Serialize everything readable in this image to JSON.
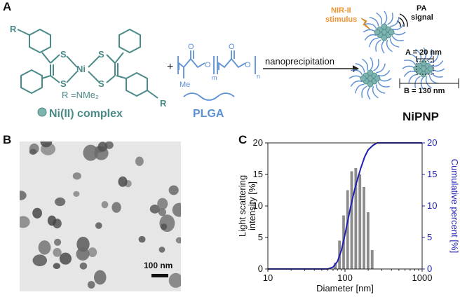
{
  "panels": {
    "a": "A",
    "b": "B",
    "c": "C"
  },
  "panel_a": {
    "substituent": "R",
    "metal": "Ni",
    "sulfur": "S",
    "r_definition": "R =NMe₂",
    "complex_label": "Ni(II) complex",
    "plus": "+",
    "methyl": "Me",
    "sub_m": "m",
    "sub_n": "n",
    "oxygen": "O",
    "polymer_label": "PLGA",
    "arrow_label": "nanoprecipitation",
    "stimulus_line1": "NIR-II",
    "stimulus_line2": "stimulus",
    "signal_line1": "PA",
    "signal_line2": "signal",
    "dim_a": "A = 20 nm",
    "dim_b": "B = 130 nm",
    "product_label": "NiPNP",
    "colors": {
      "teal": "#4a8a87",
      "blue": "#5b8fd6",
      "orange": "#f2922e"
    }
  },
  "panel_b": {
    "scale_bar": "100 nm"
  },
  "chart_data": {
    "type": "bar",
    "xlabel": "Diameter [nm]",
    "ylabel": "Light scattering intensity [%]",
    "ylabel_line1": "Light scattering",
    "ylabel_line2": "intensity [%]",
    "y2label": "Cumulative percent [%]",
    "xscale": "log",
    "xlim": [
      10,
      1000
    ],
    "ylim": [
      0,
      20
    ],
    "y2lim": [
      0,
      20
    ],
    "x_ticks": [
      "10",
      "100",
      "1000"
    ],
    "y_ticks": [
      "0",
      "5",
      "10",
      "15",
      "20"
    ],
    "y2_ticks": [
      "0",
      "5",
      "10",
      "15",
      "20"
    ],
    "bars": {
      "color": "#8c8c8c",
      "centers": [
        75,
        85,
        96,
        108,
        122,
        138,
        156,
        176,
        199,
        225
      ],
      "values": [
        1.0,
        4.5,
        8.5,
        12.5,
        15.5,
        16.0,
        15.0,
        13.0,
        9.0,
        3.0
      ]
    },
    "cumulative": {
      "color": "#1f1fb4",
      "x": [
        10,
        60,
        70,
        80,
        90,
        100,
        110,
        120,
        130,
        140,
        160,
        180,
        200,
        230,
        260,
        1000
      ],
      "y": [
        0,
        0,
        0.3,
        1.2,
        3.0,
        5.5,
        8.0,
        10.2,
        12.0,
        13.6,
        16.0,
        17.8,
        18.9,
        19.6,
        20,
        20
      ]
    }
  }
}
